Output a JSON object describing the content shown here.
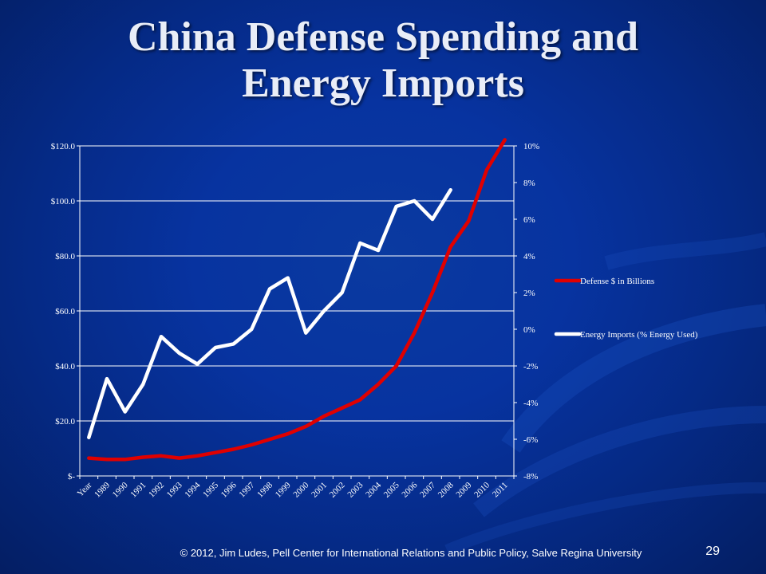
{
  "slide": {
    "title_line1": "China Defense Spending and",
    "title_line2": "Energy Imports",
    "footer": "© 2012, Jim  Ludes, Pell Center for International Relations and Public Policy,  Salve Regina University",
    "page_number": "29"
  },
  "colors": {
    "background": "#0733a0",
    "defense_line": "#e00000",
    "energy_line": "#ffffff",
    "grid": "#ffffff"
  },
  "chart_data": {
    "type": "line",
    "title": "",
    "x": [
      "Year",
      "1989",
      "1990",
      "1991",
      "1992",
      "1993",
      "1994",
      "1995",
      "1996",
      "1997",
      "1998",
      "1999",
      "2000",
      "2001",
      "2002",
      "2003",
      "2004",
      "2005",
      "2006",
      "2007",
      "2008",
      "2009",
      "2010",
      "2011"
    ],
    "series": [
      {
        "name": "Defense $ in Billions",
        "axis": "left",
        "values": [
          6.5,
          6.0,
          6.0,
          6.8,
          7.3,
          6.5,
          7.3,
          8.5,
          9.7,
          11.3,
          13.3,
          15.3,
          18.0,
          21.7,
          24.7,
          27.7,
          33.3,
          40.0,
          52.0,
          66.7,
          83.3,
          92.7,
          111.3,
          122.2
        ]
      },
      {
        "name": "Energy Imports (% Energy Used)",
        "axis": "right",
        "values": [
          -5.9,
          -2.7,
          -4.5,
          -3.0,
          -0.4,
          -1.3,
          -1.9,
          -1.0,
          -0.8,
          0.0,
          2.2,
          2.8,
          -0.2,
          1.0,
          2.0,
          4.7,
          4.3,
          6.7,
          7.0,
          6.0,
          7.6,
          null,
          null,
          null
        ]
      }
    ],
    "y_left": {
      "ylim": [
        0,
        120
      ],
      "ticks": [
        0,
        20,
        40,
        60,
        80,
        100,
        120
      ],
      "tick_labels": [
        "$-",
        "$20.0",
        "$40.0",
        "$60.0",
        "$80.0",
        "$100.0",
        "$120.0"
      ]
    },
    "y_right": {
      "ylim": [
        -8,
        10
      ],
      "ticks": [
        -8,
        -6,
        -4,
        -2,
        0,
        2,
        4,
        6,
        8,
        10
      ],
      "tick_labels": [
        "-8%",
        "-6%",
        "-4%",
        "-2%",
        "0%",
        "2%",
        "4%",
        "6%",
        "8%",
        "10%"
      ]
    },
    "grid": true,
    "legend_placement": "right"
  }
}
